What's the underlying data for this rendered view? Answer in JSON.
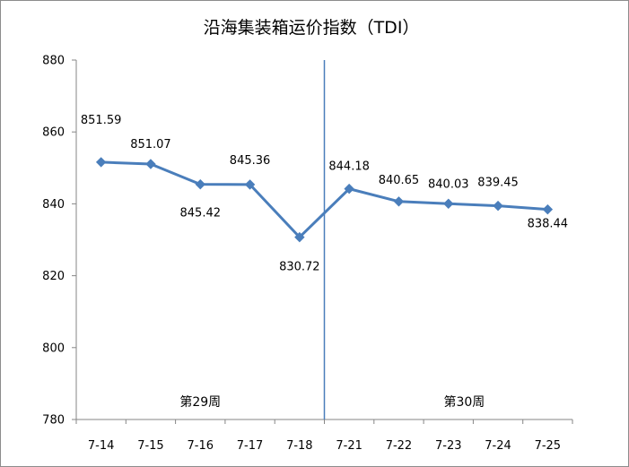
{
  "chart_data": {
    "type": "line",
    "title": "沿海集装箱运价指数（TDI）",
    "categories": [
      "7-14",
      "7-15",
      "7-16",
      "7-17",
      "7-18",
      "7-21",
      "7-22",
      "7-23",
      "7-24",
      "7-25"
    ],
    "values": [
      851.59,
      851.07,
      845.42,
      845.36,
      830.72,
      844.18,
      840.65,
      840.03,
      839.45,
      838.44
    ],
    "data_labels": [
      "851.59",
      "851.07",
      "845.42",
      "845.36",
      "830.72",
      "844.18",
      "840.65",
      "840.03",
      "839.45",
      "838.44"
    ],
    "ylim": [
      780,
      880
    ],
    "yticks": [
      780,
      800,
      820,
      840,
      860,
      880
    ],
    "ytick_labels": [
      "780",
      "800",
      "820",
      "840",
      "860",
      "880"
    ],
    "grid": false,
    "legend": "none",
    "series_color": "#4a7ebb",
    "divider": {
      "after_category_index": 4,
      "color": "#4a7ebb"
    },
    "annotations": [
      "第29周",
      "第30周"
    ]
  }
}
